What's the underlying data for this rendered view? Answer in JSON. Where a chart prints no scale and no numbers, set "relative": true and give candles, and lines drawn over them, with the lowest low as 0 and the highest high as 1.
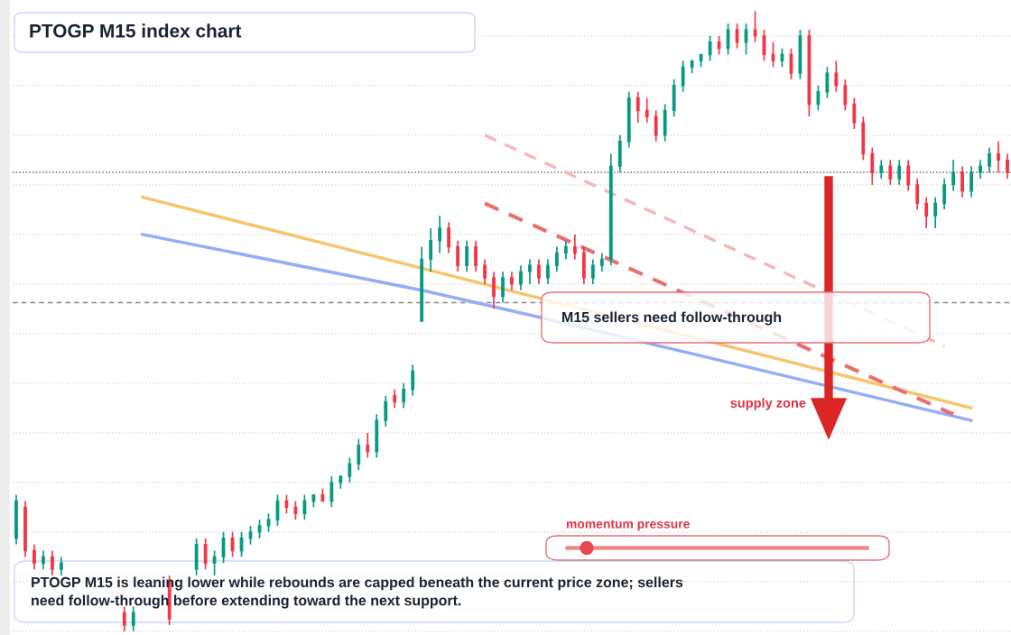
{
  "chart_data": {
    "type": "candlestick",
    "title": "PTOGP M15 index chart",
    "relative": true,
    "grid": true,
    "legend": false,
    "categories": [
      null,
      null,
      null,
      null,
      null,
      null,
      null,
      null,
      null,
      null,
      null,
      null,
      null,
      null,
      null,
      null,
      null,
      null,
      null,
      null,
      null,
      null,
      null,
      null,
      null,
      null,
      null,
      null,
      null,
      null,
      null,
      null,
      null,
      null,
      null,
      null,
      null,
      null,
      null,
      null,
      null,
      null,
      null,
      null,
      null,
      null,
      null,
      null,
      null,
      null,
      null,
      null,
      null,
      null,
      null,
      null,
      null,
      null,
      null,
      null,
      null,
      null,
      null,
      null,
      null,
      null,
      null,
      null,
      null,
      null,
      null,
      null,
      null,
      null,
      null,
      null,
      null,
      null,
      null,
      null,
      null,
      null,
      null,
      null,
      null,
      null,
      null,
      null,
      null,
      null,
      null,
      null,
      null,
      null,
      null,
      null,
      null,
      null,
      null,
      null,
      null,
      null,
      null,
      null,
      null,
      null,
      null,
      null,
      null,
      null,
      null
    ],
    "ohlc": [
      [
        0.15,
        0.22,
        0.14,
        0.21
      ],
      [
        0.2,
        0.21,
        0.12,
        0.13
      ],
      [
        0.13,
        0.14,
        0.1,
        0.11
      ],
      [
        0.11,
        0.13,
        0.1,
        0.12
      ],
      [
        0.12,
        0.13,
        0.09,
        0.1
      ],
      [
        0.1,
        0.12,
        0.09,
        0.11
      ],
      null,
      null,
      null,
      null,
      null,
      null,
      [
        0.03,
        0.04,
        0.0,
        0.01
      ],
      [
        0.01,
        0.04,
        0.0,
        0.03
      ],
      null,
      null,
      null,
      [
        0.08,
        0.09,
        0.01,
        0.02
      ],
      null,
      null,
      [
        0.1,
        0.15,
        0.09,
        0.14
      ],
      [
        0.14,
        0.15,
        0.1,
        0.11
      ],
      [
        0.11,
        0.13,
        0.09,
        0.12
      ],
      [
        0.12,
        0.16,
        0.11,
        0.15
      ],
      [
        0.15,
        0.16,
        0.12,
        0.13
      ],
      [
        0.13,
        0.16,
        0.12,
        0.15
      ],
      [
        0.15,
        0.17,
        0.14,
        0.16
      ],
      [
        0.16,
        0.18,
        0.15,
        0.17
      ],
      [
        0.17,
        0.19,
        0.16,
        0.18
      ],
      [
        0.18,
        0.22,
        0.17,
        0.21
      ],
      [
        0.21,
        0.22,
        0.19,
        0.2
      ],
      [
        0.2,
        0.21,
        0.18,
        0.19
      ],
      [
        0.19,
        0.22,
        0.18,
        0.21
      ],
      [
        0.21,
        0.22,
        0.2,
        0.22
      ],
      [
        0.22,
        0.23,
        0.21,
        0.21
      ],
      [
        0.21,
        0.25,
        0.2,
        0.24
      ],
      [
        0.24,
        0.25,
        0.23,
        0.25
      ],
      [
        0.25,
        0.28,
        0.24,
        0.27
      ],
      [
        0.27,
        0.31,
        0.26,
        0.3
      ],
      [
        0.3,
        0.32,
        0.28,
        0.29
      ],
      [
        0.29,
        0.35,
        0.28,
        0.34
      ],
      [
        0.34,
        0.38,
        0.33,
        0.37
      ],
      [
        0.38,
        0.39,
        0.36,
        0.37
      ],
      [
        0.37,
        0.4,
        0.36,
        0.39
      ],
      [
        0.39,
        0.43,
        0.38,
        0.42
      ],
      [
        0.5,
        0.62,
        0.5,
        0.6
      ],
      [
        0.6,
        0.65,
        0.58,
        0.63
      ],
      [
        0.63,
        0.67,
        0.61,
        0.65
      ],
      [
        0.65,
        0.66,
        0.61,
        0.62
      ],
      [
        0.62,
        0.63,
        0.58,
        0.59
      ],
      [
        0.59,
        0.63,
        0.58,
        0.62
      ],
      [
        0.62,
        0.63,
        0.58,
        0.59
      ],
      [
        0.59,
        0.6,
        0.56,
        0.57
      ],
      [
        0.57,
        0.58,
        0.52,
        0.54
      ],
      [
        0.54,
        0.58,
        0.53,
        0.57
      ],
      [
        0.57,
        0.58,
        0.55,
        0.56
      ],
      [
        0.56,
        0.59,
        0.55,
        0.58
      ],
      [
        0.58,
        0.6,
        0.56,
        0.59
      ],
      [
        0.59,
        0.6,
        0.56,
        0.57
      ],
      [
        0.57,
        0.6,
        0.56,
        0.59
      ],
      [
        0.59,
        0.62,
        0.58,
        0.61
      ],
      [
        0.61,
        0.63,
        0.6,
        0.62
      ],
      [
        0.62,
        0.64,
        0.6,
        0.61
      ],
      [
        0.61,
        0.62,
        0.56,
        0.57
      ],
      [
        0.57,
        0.6,
        0.56,
        0.59
      ],
      [
        0.59,
        0.61,
        0.58,
        0.6
      ],
      [
        0.6,
        0.77,
        0.59,
        0.75
      ],
      [
        0.75,
        0.8,
        0.74,
        0.79
      ],
      [
        0.79,
        0.87,
        0.78,
        0.86
      ],
      [
        0.86,
        0.87,
        0.82,
        0.84
      ],
      [
        0.84,
        0.86,
        0.82,
        0.83
      ],
      [
        0.83,
        0.84,
        0.79,
        0.8
      ],
      [
        0.8,
        0.85,
        0.79,
        0.84
      ],
      [
        0.84,
        0.89,
        0.83,
        0.88
      ],
      [
        0.88,
        0.92,
        0.87,
        0.91
      ],
      [
        0.91,
        0.92,
        0.9,
        0.92
      ],
      [
        0.92,
        0.93,
        0.91,
        0.93
      ],
      [
        0.93,
        0.96,
        0.92,
        0.95
      ],
      [
        0.95,
        0.96,
        0.93,
        0.94
      ],
      [
        0.94,
        0.98,
        0.93,
        0.97
      ],
      [
        0.97,
        0.98,
        0.94,
        0.95
      ],
      [
        0.95,
        0.98,
        0.93,
        0.97
      ],
      [
        0.97,
        1.0,
        0.95,
        0.96
      ],
      [
        0.96,
        0.97,
        0.92,
        0.93
      ],
      [
        0.93,
        0.95,
        0.91,
        0.92
      ],
      [
        0.92,
        0.94,
        0.91,
        0.93
      ],
      [
        0.93,
        0.94,
        0.89,
        0.9
      ],
      [
        0.9,
        0.97,
        0.89,
        0.96
      ],
      [
        0.96,
        0.97,
        0.83,
        0.85
      ],
      [
        0.85,
        0.88,
        0.84,
        0.87
      ],
      [
        0.87,
        0.91,
        0.86,
        0.9
      ],
      [
        0.9,
        0.92,
        0.87,
        0.88
      ],
      [
        0.88,
        0.89,
        0.84,
        0.85
      ],
      [
        0.85,
        0.86,
        0.81,
        0.82
      ],
      [
        0.82,
        0.83,
        0.76,
        0.77
      ],
      [
        0.77,
        0.78,
        0.72,
        0.74
      ],
      [
        0.74,
        0.76,
        0.73,
        0.75
      ],
      [
        0.75,
        0.76,
        0.72,
        0.73
      ],
      [
        0.73,
        0.76,
        0.72,
        0.75
      ],
      [
        0.75,
        0.76,
        0.71,
        0.72
      ],
      [
        0.72,
        0.73,
        0.68,
        0.69
      ],
      [
        0.69,
        0.7,
        0.65,
        0.67
      ],
      [
        0.67,
        0.7,
        0.65,
        0.69
      ],
      [
        0.69,
        0.73,
        0.68,
        0.72
      ],
      [
        0.72,
        0.76,
        0.71,
        0.74
      ],
      [
        0.74,
        0.75,
        0.7,
        0.71
      ],
      [
        0.71,
        0.75,
        0.7,
        0.74
      ],
      [
        0.74,
        0.76,
        0.73,
        0.75
      ],
      [
        0.75,
        0.78,
        0.74,
        0.77
      ],
      [
        0.77,
        0.79,
        0.74,
        0.76
      ],
      [
        0.76,
        0.77,
        0.73,
        0.74
      ]
    ],
    "colors": [
      "#089981",
      "#f23645",
      "#f23645",
      "#089981",
      "#f23645",
      "#089981",
      "#f23645",
      "#089981",
      "#f23645",
      "#f23645",
      "#089981",
      "#f23645",
      "#f23645",
      "#089981",
      "#089981",
      "#f23645",
      "#089981",
      "#f23645",
      "#089981",
      "#089981",
      "#089981",
      "#f23645",
      "#089981",
      "#089981",
      "#f23645",
      "#089981",
      "#089981",
      "#089981",
      "#089981",
      "#089981",
      "#f23645",
      "#f23645",
      "#089981",
      "#089981",
      "#f23645",
      "#089981",
      "#089981",
      "#089981",
      "#089981",
      "#f23645",
      "#089981",
      "#089981",
      "#f23645",
      "#089981",
      "#089981",
      "#089981",
      "#089981",
      "#089981",
      "#f23645",
      "#f23645",
      "#089981",
      "#f23645",
      "#f23645",
      "#f23645",
      "#089981",
      "#f23645",
      "#089981",
      "#089981",
      "#f23645",
      "#089981",
      "#089981",
      "#089981",
      "#f23645",
      "#f23645",
      "#089981",
      "#089981",
      "#089981",
      "#089981",
      "#089981",
      "#f23645",
      "#f23645",
      "#f23645",
      "#089981",
      "#089981",
      "#089981",
      "#089981",
      "#089981",
      "#089981",
      "#f23645",
      "#089981",
      "#f23645",
      "#089981",
      "#f23645",
      "#f23645",
      "#f23645",
      "#089981",
      "#f23645",
      "#089981",
      "#f23645",
      "#089981",
      "#089981",
      "#f23645",
      "#f23645",
      "#f23645",
      "#f23645",
      "#f23645",
      "#089981",
      "#f23645",
      "#089981",
      "#f23645",
      "#f23645",
      "#f23645",
      "#089981",
      "#089981",
      "#089981",
      "#f23645",
      "#089981",
      "#089981",
      "#089981",
      "#f23645",
      "#f23645"
    ],
    "series": [
      {
        "type": "line",
        "color": "#f7c46c",
        "line_style": "solid",
        "values": [
          null,
          null,
          null,
          null,
          null,
          null,
          null,
          null,
          null,
          null,
          null,
          null,
          null,
          null,
          0.7,
          null,
          null,
          null,
          null,
          null,
          null,
          null,
          null,
          null,
          null,
          null,
          null,
          null,
          null,
          null,
          null,
          null,
          null,
          null,
          null,
          null,
          null,
          null,
          null,
          null,
          null,
          null,
          null,
          null,
          null,
          null,
          null,
          null,
          null,
          null,
          null,
          null,
          null,
          null,
          null,
          null,
          null,
          null,
          null,
          null,
          null,
          null,
          null,
          null,
          null,
          null,
          null,
          null,
          null,
          null,
          null,
          null,
          null,
          null,
          null,
          null,
          null,
          null,
          null,
          null,
          null,
          null,
          null,
          null,
          null,
          null,
          null,
          null,
          null,
          null,
          null,
          null,
          null,
          null,
          null,
          null,
          null,
          null,
          null,
          null,
          null,
          null,
          null,
          null,
          null,
          null,
          0.36,
          null,
          null,
          null,
          null
        ]
      },
      {
        "type": "line",
        "color": "#93aef5",
        "line_style": "solid",
        "values": [
          null,
          null,
          null,
          null,
          null,
          null,
          null,
          null,
          null,
          null,
          null,
          null,
          null,
          null,
          0.64,
          null,
          null,
          null,
          null,
          null,
          null,
          null,
          null,
          null,
          null,
          null,
          null,
          null,
          null,
          null,
          null,
          null,
          null,
          null,
          null,
          null,
          null,
          null,
          null,
          null,
          null,
          null,
          null,
          null,
          null,
          0.55,
          null,
          null,
          null,
          null,
          null,
          null,
          null,
          null,
          null,
          null,
          null,
          0.51,
          null,
          null,
          null,
          null,
          null,
          null,
          null,
          null,
          null,
          null,
          null,
          null,
          null,
          null,
          null,
          null,
          null,
          null,
          null,
          null,
          null,
          null,
          null,
          null,
          null,
          null,
          null,
          null,
          null,
          null,
          null,
          null,
          null,
          null,
          null,
          null,
          null,
          null,
          null,
          null,
          null,
          null,
          null,
          null,
          null,
          null,
          null,
          null,
          0.34,
          null,
          null,
          null,
          null
        ]
      },
      {
        "type": "line",
        "color": "#e87070",
        "line_style": "dashed",
        "values": [
          null,
          null,
          null,
          null,
          null,
          null,
          null,
          null,
          null,
          null,
          null,
          null,
          null,
          null,
          null,
          null,
          null,
          null,
          null,
          null,
          null,
          null,
          null,
          null,
          null,
          null,
          null,
          null,
          null,
          null,
          null,
          null,
          null,
          null,
          null,
          null,
          null,
          null,
          null,
          null,
          null,
          null,
          null,
          null,
          null,
          null,
          null,
          null,
          null,
          null,
          null,
          null,
          0.69,
          null,
          null,
          null,
          null,
          null,
          null,
          null,
          null,
          null,
          null,
          null,
          null,
          null,
          null,
          null,
          null,
          null,
          null,
          null,
          null,
          null,
          null,
          null,
          null,
          null,
          null,
          null,
          null,
          null,
          null,
          null,
          null,
          null,
          null,
          null,
          null,
          null,
          null,
          null,
          null,
          null,
          null,
          null,
          null,
          null,
          null,
          null,
          null,
          null,
          null,
          null,
          0.35,
          null,
          null,
          null,
          null,
          null,
          null
        ]
      },
      {
        "type": "line",
        "color": "#f5b8b8",
        "line_style": "dashed",
        "values": [
          null,
          null,
          null,
          null,
          null,
          null,
          null,
          null,
          null,
          null,
          null,
          null,
          null,
          null,
          null,
          null,
          null,
          null,
          null,
          null,
          null,
          null,
          null,
          null,
          null,
          null,
          null,
          null,
          null,
          null,
          null,
          null,
          null,
          null,
          null,
          null,
          null,
          null,
          null,
          null,
          null,
          null,
          null,
          null,
          null,
          null,
          null,
          null,
          null,
          null,
          null,
          null,
          0.8,
          null,
          null,
          null,
          null,
          null,
          null,
          null,
          null,
          null,
          null,
          null,
          null,
          null,
          null,
          null,
          null,
          null,
          null,
          null,
          null,
          null,
          null,
          null,
          null,
          null,
          null,
          null,
          null,
          null,
          null,
          null,
          null,
          null,
          null,
          null,
          null,
          null,
          null,
          null,
          null,
          null,
          null,
          null,
          null,
          null,
          null,
          null,
          null,
          null,
          null,
          0.46,
          null,
          null,
          null,
          null,
          null,
          null,
          null
        ]
      }
    ],
    "ref_lines": [
      {
        "axis": "y",
        "value": 0.74,
        "color": "#444444",
        "line_style": "dotted"
      },
      {
        "axis": "y",
        "value": 0.53,
        "color": "#888888",
        "line_style": "dashed"
      }
    ],
    "annotations": [
      "M15 sellers need follow-through",
      "supply zone",
      "momentum pressure",
      "PTOGP M15 is leaning lower while rebounds are capped beneath the current price zone; sellers\nneed follow-through before extending toward the next support."
    ]
  }
}
